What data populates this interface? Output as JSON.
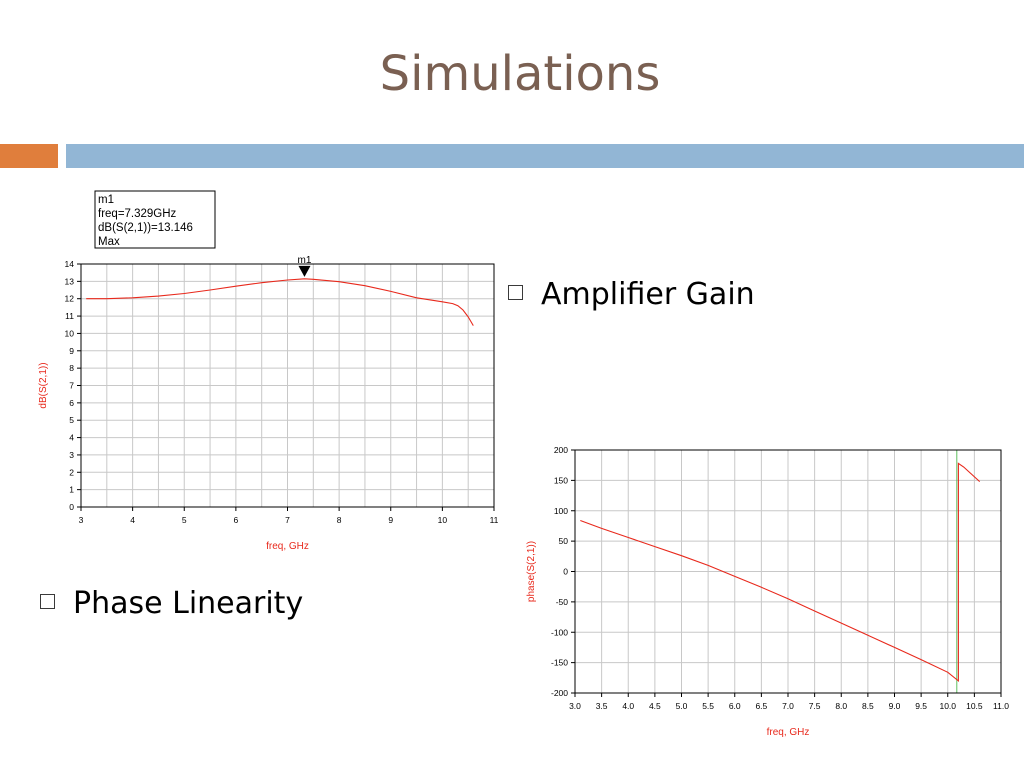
{
  "slide": {
    "title": "Simulations",
    "colors": {
      "title": "#7a6052",
      "accent_orange": "#e07e3c",
      "accent_blue": "#92b6d5",
      "trace": "#e8291c"
    }
  },
  "bullets": [
    {
      "text": "Amplifier Gain"
    },
    {
      "text": "Phase Linearity"
    }
  ],
  "chart_data": [
    {
      "type": "line",
      "xlabel": "freq, GHz",
      "ylabel": "dB(S(2,1))",
      "xlim": [
        3,
        11
      ],
      "ylim": [
        0,
        14
      ],
      "xticks": [
        3,
        4,
        5,
        6,
        7,
        8,
        9,
        10,
        11
      ],
      "yticks": [
        0,
        1,
        2,
        3,
        4,
        5,
        6,
        7,
        8,
        9,
        10,
        11,
        12,
        13,
        14
      ],
      "grid": true,
      "series": [
        {
          "x": [
            3.1,
            3.5,
            4.0,
            4.5,
            5.0,
            5.5,
            6.0,
            6.5,
            7.0,
            7.329,
            7.5,
            8.0,
            8.5,
            9.0,
            9.5,
            10.0,
            10.2,
            10.3,
            10.4,
            10.5,
            10.6
          ],
          "y": [
            12.0,
            12.0,
            12.05,
            12.15,
            12.3,
            12.5,
            12.72,
            12.92,
            13.08,
            13.146,
            13.12,
            12.98,
            12.75,
            12.42,
            12.05,
            11.82,
            11.72,
            11.6,
            11.35,
            10.95,
            10.45
          ]
        }
      ],
      "marker": {
        "name": "m1",
        "x": 7.329,
        "y": 13.146,
        "lines": [
          "m1",
          "freq=7.329GHz",
          "dB(S(2,1))=13.146",
          "Max"
        ]
      }
    },
    {
      "type": "line",
      "xlabel": "freq, GHz",
      "ylabel": "phase(S(2,1))",
      "xlim": [
        3.0,
        11.0
      ],
      "ylim": [
        -200,
        200
      ],
      "xticks": [
        "3.0",
        "3.5",
        "4.0",
        "4.5",
        "5.0",
        "5.5",
        "6.0",
        "6.5",
        "7.0",
        "7.5",
        "8.0",
        "8.5",
        "9.0",
        "9.5",
        "10.0",
        "10.5",
        "11.0"
      ],
      "yticks": [
        -200,
        -150,
        -100,
        -50,
        0,
        50,
        100,
        150,
        200
      ],
      "grid": true,
      "series": [
        {
          "x": [
            3.1,
            3.5,
            4.0,
            4.5,
            5.0,
            5.5,
            6.0,
            6.5,
            7.0,
            7.5,
            8.0,
            8.5,
            9.0,
            9.5,
            10.0,
            10.2,
            10.2,
            10.3,
            10.4,
            10.6
          ],
          "y": [
            84,
            71,
            56,
            41,
            26,
            10,
            -8,
            -26,
            -45,
            -65,
            -85,
            -105,
            -125,
            -145,
            -166,
            -180,
            178,
            172,
            164,
            148
          ]
        }
      ],
      "wrap_line_x": 10.0
    }
  ]
}
